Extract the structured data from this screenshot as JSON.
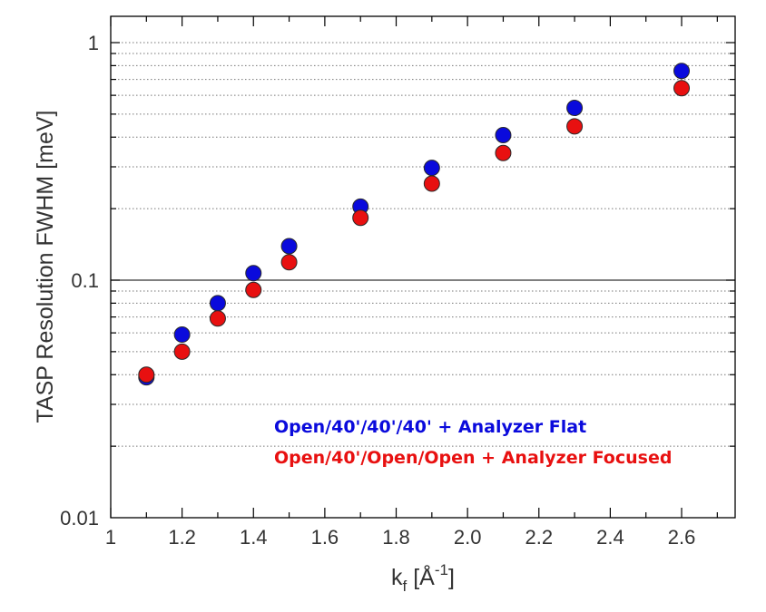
{
  "chart_data": {
    "type": "scatter",
    "xlabel": {
      "main": "k",
      "sub": "f",
      "unit_open": " [Å",
      "sup": "-1",
      "unit_close": "]"
    },
    "ylabel": "TASP Resolution FWHM [meV]",
    "xlim": [
      1.0,
      2.75
    ],
    "ylim": [
      0.01,
      1.5
    ],
    "yscale": "log",
    "x_ticks": [
      1.0,
      1.2,
      1.4,
      1.6,
      1.8,
      2.0,
      2.2,
      2.4,
      2.6
    ],
    "x_tick_labels": [
      "1",
      "1.2",
      "1.4",
      "1.6",
      "1.8",
      "2.0",
      "2.2",
      "2.4",
      "2.6"
    ],
    "y_ticks": [
      0.01,
      0.1,
      1
    ],
    "y_tick_labels": [
      "0.01",
      "0.1",
      "1"
    ],
    "grid": "horizontal, dotted at minor decades, solid at 0.1",
    "legend_position": "lower-right, inside plot",
    "series": [
      {
        "name": "Open/40'/40'/40' + Analyzer Flat",
        "color": "#0a0adc",
        "x": [
          1.1,
          1.2,
          1.3,
          1.4,
          1.5,
          1.7,
          1.9,
          2.1,
          2.3,
          2.6
        ],
        "y": [
          0.039,
          0.059,
          0.08,
          0.107,
          0.139,
          0.204,
          0.297,
          0.408,
          0.531,
          0.76
        ]
      },
      {
        "name": "Open/40'/Open/Open + Analyzer Focused",
        "color": "#e81010",
        "x": [
          1.1,
          1.2,
          1.3,
          1.4,
          1.5,
          1.7,
          1.9,
          2.1,
          2.3,
          2.6
        ],
        "y": [
          0.04,
          0.05,
          0.069,
          0.091,
          0.119,
          0.183,
          0.255,
          0.343,
          0.444,
          0.643
        ]
      }
    ]
  }
}
